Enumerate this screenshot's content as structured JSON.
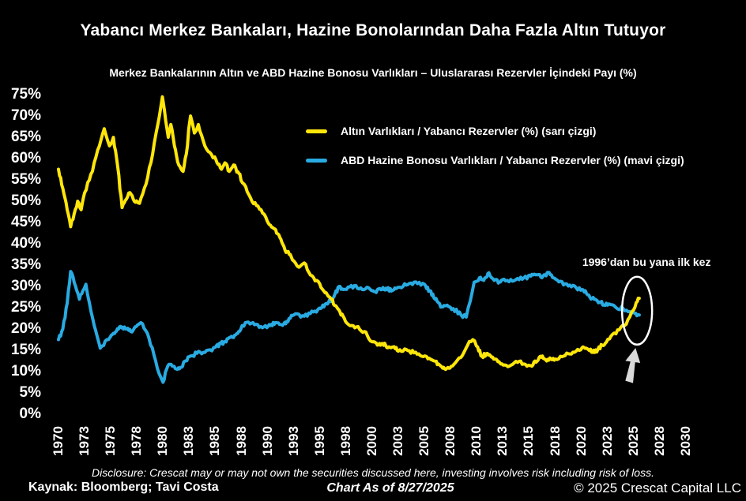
{
  "title": "Yabancı Merkez Bankaları, Hazine Bonolarından Daha Fazla Altın Tutuyor",
  "subtitle": "Merkez Bankalarının Altın ve ABD Hazine Bonosu Varlıkları – Uluslararası Rezervler İçindeki Payı (%)",
  "legend": {
    "items": [
      {
        "label": "Altın Varlıkları / Yabancı Rezervler (%) (sarı çizgi)",
        "color": "#FFE60A"
      },
      {
        "label": "ABD Hazine Bonosu Varlıkları / Yabancı Rezervler (%) (mavi çizgi)",
        "color": "#29ABE2"
      }
    ]
  },
  "annotation": {
    "text": "1996’dan bu yana ilk kez"
  },
  "footer": {
    "disclosure": "Disclosure: Crescat may or may not own the securities discussed here, investing involves risk including risk of loss.",
    "source": "Kaynak: Bloomberg; Tavi Costa",
    "as_of": "Chart As of 8/27/2025",
    "copyright": "© 2025 Crescat Capital LLC"
  },
  "colors": {
    "background": "#000000",
    "text": "#FFFFFF",
    "gold_line": "#FFE60A",
    "treasury_line": "#29ABE2",
    "ellipse": "#FFFFFF",
    "arrow": "#D9D9D9"
  },
  "chart_data": {
    "type": "line",
    "title": "Merkez Bankalarının Altın ve ABD Hazine Bonosu Varlıkları – Uluslararası Rezervler İçindeki Payı (%)",
    "x_unit": "year",
    "ylim": [
      0,
      75
    ],
    "ytick_step": 5,
    "grid": false,
    "legend_position": "top-center",
    "annotation_at": {
      "year": 2025.4,
      "value": 24.3,
      "text": "1996’dan bu yana ilk kez"
    },
    "y_ticks": [
      "75%",
      "70%",
      "65%",
      "60%",
      "55%",
      "50%",
      "45%",
      "40%",
      "35%",
      "30%",
      "25%",
      "20%",
      "15%",
      "10%",
      "5%",
      "0%"
    ],
    "x_ticks": [
      "1970",
      "1973",
      "1975",
      "1978",
      "1980",
      "1983",
      "1985",
      "1988",
      "1990",
      "1993",
      "1995",
      "1998",
      "2000",
      "2003",
      "2005",
      "2008",
      "2010",
      "2013",
      "2015",
      "2018",
      "2020",
      "2023",
      "2025",
      "2028",
      "2030"
    ],
    "x_tick_years": [
      1970,
      1973,
      1975,
      1978,
      1980,
      1983,
      1985,
      1988,
      1990,
      1993,
      1995,
      1998,
      2000,
      2003,
      2005,
      2008,
      2010,
      2013,
      2015,
      2018,
      2020,
      2023,
      2025,
      2028,
      2030
    ],
    "visual_jitter_pct": 0.45,
    "line_width": 4,
    "series": [
      {
        "name": "Altın Varlıkları / Yabancı Rezervler (%)",
        "color": "#FFE60A",
        "points": [
          [
            1970,
            57.5
          ],
          [
            1970.5,
            53
          ],
          [
            1971,
            48
          ],
          [
            1971.4,
            44
          ],
          [
            1971.8,
            47
          ],
          [
            1972.2,
            50
          ],
          [
            1972.6,
            48
          ],
          [
            1973,
            52
          ],
          [
            1973.6,
            57
          ],
          [
            1974,
            62
          ],
          [
            1974.5,
            67
          ],
          [
            1974.9,
            63
          ],
          [
            1975.3,
            65
          ],
          [
            1975.8,
            58
          ],
          [
            1976.3,
            48.5
          ],
          [
            1976.8,
            50.5
          ],
          [
            1977.2,
            52
          ],
          [
            1977.7,
            50
          ],
          [
            1978.2,
            49.5
          ],
          [
            1978.7,
            54
          ],
          [
            1979.2,
            61
          ],
          [
            1979.6,
            68
          ],
          [
            1979.95,
            74.5
          ],
          [
            1980.3,
            69
          ],
          [
            1980.6,
            65
          ],
          [
            1980.9,
            68
          ],
          [
            1981.3,
            63
          ],
          [
            1981.8,
            58.5
          ],
          [
            1982.3,
            57
          ],
          [
            1982.8,
            63
          ],
          [
            1983.1,
            70
          ],
          [
            1983.4,
            66
          ],
          [
            1983.7,
            68
          ],
          [
            1984.2,
            63
          ],
          [
            1984.7,
            61
          ],
          [
            1985.2,
            59
          ],
          [
            1985.7,
            57.5
          ],
          [
            1986.1,
            59
          ],
          [
            1986.6,
            57
          ],
          [
            1987.1,
            58.5
          ],
          [
            1987.7,
            56.5
          ],
          [
            1988.2,
            54
          ],
          [
            1988.8,
            50
          ],
          [
            1989.5,
            48
          ],
          [
            1990.2,
            44.5
          ],
          [
            1990.8,
            43.5
          ],
          [
            1991.4,
            41.5
          ],
          [
            1992,
            38.5
          ],
          [
            1992.6,
            37.5
          ],
          [
            1993,
            36
          ],
          [
            1993.4,
            34.5
          ],
          [
            1993.8,
            35.5
          ],
          [
            1994.4,
            32.5
          ],
          [
            1995,
            30.5
          ],
          [
            1995.6,
            28.5
          ],
          [
            1996.2,
            27.3
          ],
          [
            1996.8,
            25.5
          ],
          [
            1997.3,
            24
          ],
          [
            1997.8,
            22.5
          ],
          [
            1998.3,
            20.8
          ],
          [
            1998.8,
            20.5
          ],
          [
            1999.4,
            19.4
          ],
          [
            2000,
            17
          ],
          [
            2000.6,
            16.2
          ],
          [
            2001.2,
            16.6
          ],
          [
            2001.8,
            15.6
          ],
          [
            2002.4,
            15.8
          ],
          [
            2003,
            14.8
          ],
          [
            2003.6,
            15.2
          ],
          [
            2004.2,
            14.4
          ],
          [
            2004.8,
            13.6
          ],
          [
            2005.4,
            13
          ],
          [
            2006,
            12.6
          ],
          [
            2006.6,
            11.8
          ],
          [
            2007.2,
            11
          ],
          [
            2007.8,
            10.8
          ],
          [
            2008.4,
            12.2
          ],
          [
            2008.9,
            13.8
          ],
          [
            2009.3,
            16.2
          ],
          [
            2009.7,
            17.5
          ],
          [
            2010.1,
            15.8
          ],
          [
            2010.6,
            13.6
          ],
          [
            2011.1,
            14.2
          ],
          [
            2011.7,
            13.4
          ],
          [
            2012.3,
            12.8
          ],
          [
            2012.9,
            11.8
          ],
          [
            2013.5,
            11.3
          ],
          [
            2014,
            12.4
          ],
          [
            2014.6,
            11.8
          ],
          [
            2015.2,
            11.4
          ],
          [
            2015.8,
            12.2
          ],
          [
            2016.3,
            13.6
          ],
          [
            2016.9,
            12.8
          ],
          [
            2017.4,
            13.2
          ],
          [
            2017.9,
            12.7
          ],
          [
            2018.4,
            13.6
          ],
          [
            2019,
            14.2
          ],
          [
            2019.6,
            14.8
          ],
          [
            2020.2,
            15.8
          ],
          [
            2020.8,
            15.2
          ],
          [
            2021.3,
            14.5
          ],
          [
            2021.9,
            15.2
          ],
          [
            2022.4,
            16.2
          ],
          [
            2022.9,
            17
          ],
          [
            2023.4,
            18.8
          ],
          [
            2023.9,
            19.8
          ],
          [
            2024.3,
            20.8
          ],
          [
            2024.7,
            22.8
          ],
          [
            2025,
            24.5
          ],
          [
            2025.3,
            26.2
          ],
          [
            2025.65,
            27.2
          ]
        ]
      },
      {
        "name": "ABD Hazine Bonosu Varlıkları / Yabancı Rezervler (%)",
        "color": "#29ABE2",
        "points": [
          [
            1970,
            17.5
          ],
          [
            1970.5,
            20
          ],
          [
            1971,
            26
          ],
          [
            1971.4,
            33.5
          ],
          [
            1971.8,
            31
          ],
          [
            1972.1,
            29
          ],
          [
            1972.4,
            27
          ],
          [
            1972.8,
            29
          ],
          [
            1973.1,
            30.5
          ],
          [
            1973.5,
            24
          ],
          [
            1974.2,
            15.5
          ],
          [
            1974.7,
            17.5
          ],
          [
            1975.3,
            19
          ],
          [
            1976,
            20.5
          ],
          [
            1976.7,
            20
          ],
          [
            1977.3,
            19.4
          ],
          [
            1977.8,
            20.5
          ],
          [
            1978.3,
            21.5
          ],
          [
            1978.8,
            19
          ],
          [
            1979.3,
            14
          ],
          [
            1979.7,
            9.5
          ],
          [
            1980,
            7.5
          ],
          [
            1980.4,
            10.5
          ],
          [
            1980.8,
            11.7
          ],
          [
            1981.4,
            10.7
          ],
          [
            1982,
            11
          ],
          [
            1982.6,
            12.5
          ],
          [
            1983,
            13.5
          ],
          [
            1983.6,
            14.3
          ],
          [
            1984.2,
            14.5
          ],
          [
            1985,
            15.7
          ],
          [
            1986,
            17
          ],
          [
            1986.6,
            18
          ],
          [
            1987.2,
            18.5
          ],
          [
            1987.8,
            19.5
          ],
          [
            1988.3,
            21.5
          ],
          [
            1989,
            21
          ],
          [
            1989.6,
            20.3
          ],
          [
            1990.3,
            20.8
          ],
          [
            1991,
            21.5
          ],
          [
            1991.6,
            21
          ],
          [
            1992.2,
            21.8
          ],
          [
            1993,
            23.3
          ],
          [
            1993.8,
            23
          ],
          [
            1994.5,
            24
          ],
          [
            1995.2,
            25
          ],
          [
            1996,
            26.3
          ],
          [
            1996.6,
            27.5
          ],
          [
            1997.2,
            30
          ],
          [
            1997.8,
            29.3
          ],
          [
            1998.4,
            30.2
          ],
          [
            1999,
            29.4
          ],
          [
            1999.6,
            29.8
          ],
          [
            2000.2,
            28.8
          ],
          [
            2001,
            29.2
          ],
          [
            2001.6,
            29.6
          ],
          [
            2002.2,
            28.9
          ],
          [
            2003,
            29.8
          ],
          [
            2003.6,
            30.3
          ],
          [
            2004.2,
            31
          ],
          [
            2005,
            30.5
          ],
          [
            2005.6,
            29
          ],
          [
            2006.2,
            27
          ],
          [
            2007,
            25.2
          ],
          [
            2007.6,
            25.6
          ],
          [
            2008.2,
            24.8
          ],
          [
            2008.8,
            23.3
          ],
          [
            2009.2,
            22.8
          ],
          [
            2009.5,
            26.5
          ],
          [
            2009.8,
            31
          ],
          [
            2010.3,
            32
          ],
          [
            2010.8,
            31.4
          ],
          [
            2011.4,
            33.2
          ],
          [
            2012,
            31.4
          ],
          [
            2012.6,
            31
          ],
          [
            2013.2,
            31.3
          ],
          [
            2014,
            31.6
          ],
          [
            2014.6,
            32
          ],
          [
            2015.2,
            32.4
          ],
          [
            2016,
            32.7
          ],
          [
            2016.6,
            32.4
          ],
          [
            2017.2,
            33.3
          ],
          [
            2017.8,
            32
          ],
          [
            2018.4,
            31.2
          ],
          [
            2019,
            30.1
          ],
          [
            2019.6,
            29.7
          ],
          [
            2020.2,
            29.2
          ],
          [
            2021,
            27.4
          ],
          [
            2021.6,
            27
          ],
          [
            2022.2,
            26.2
          ],
          [
            2023,
            25.6
          ],
          [
            2023.6,
            25.2
          ],
          [
            2024.2,
            24.8
          ],
          [
            2024.7,
            24.1
          ],
          [
            2025.1,
            23.7
          ],
          [
            2025.65,
            23.3
          ]
        ]
      }
    ]
  }
}
